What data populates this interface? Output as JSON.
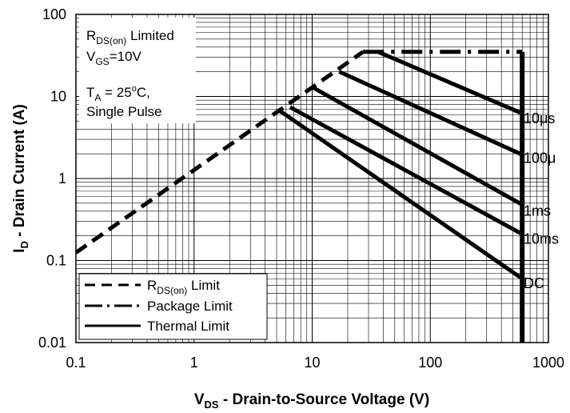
{
  "chart_data": {
    "type": "line",
    "x_scale": "log",
    "y_scale": "log",
    "xlim": [
      0.1,
      1000
    ],
    "ylim": [
      0.01,
      100
    ],
    "x_ticks": [
      "0.1",
      "1",
      "10",
      "100",
      "1000"
    ],
    "y_ticks": [
      "0.01",
      "0.1",
      "1",
      "10",
      "100"
    ],
    "xlabel": {
      "main": "V",
      "sub": "DS",
      "rest": " - Drain-to-Source Voltage (V)"
    },
    "ylabel": {
      "main": "I",
      "sub": "D",
      "rest": " - Drain Current (A)"
    },
    "grid": true,
    "annotations": {
      "line1": {
        "main": "R",
        "sub": "DS(on)",
        "rest": " Limited"
      },
      "line2": {
        "main": "V",
        "sub": "GS",
        "rest": "=10V"
      },
      "line3": {
        "main": "T",
        "sub": "A",
        "mid": " = 25",
        "sup": "o",
        "rest": "C,"
      },
      "line4": "Single Pulse"
    },
    "legend": {
      "position": "bottom-left",
      "entries": [
        {
          "main": "R",
          "sub": "DS(on)",
          "rest": " Limit",
          "style": "dashed"
        },
        {
          "main": "Package Limit",
          "sub": "",
          "rest": "",
          "style": "dashdot"
        },
        {
          "main": "Thermal Limit",
          "sub": "",
          "rest": "",
          "style": "solid"
        }
      ]
    },
    "rdson_limit": {
      "style": "dashed",
      "points": [
        [
          0.1,
          0.125
        ],
        [
          27,
          35
        ]
      ]
    },
    "package_limit": {
      "style": "dashdot",
      "points": [
        [
          27,
          35
        ],
        [
          600,
          35
        ]
      ]
    },
    "vds_max_line": {
      "style": "solid",
      "points": [
        [
          600,
          0.01
        ],
        [
          600,
          35
        ]
      ]
    },
    "series": [
      {
        "name": "10μs",
        "style": "solid",
        "points": [
          [
            36,
            35
          ],
          [
            600,
            6.2
          ]
        ]
      },
      {
        "name": "100μ",
        "style": "solid",
        "points": [
          [
            17,
            20
          ],
          [
            600,
            1.95
          ]
        ]
      },
      {
        "name": "1ms",
        "style": "solid",
        "points": [
          [
            10,
            13
          ],
          [
            600,
            0.48
          ]
        ]
      },
      {
        "name": "10ms",
        "style": "solid",
        "points": [
          [
            6.5,
            7.4
          ],
          [
            600,
            0.21
          ]
        ]
      },
      {
        "name": "DC",
        "style": "solid",
        "points": [
          [
            5.3,
            6.7
          ],
          [
            600,
            0.06
          ]
        ]
      }
    ]
  }
}
